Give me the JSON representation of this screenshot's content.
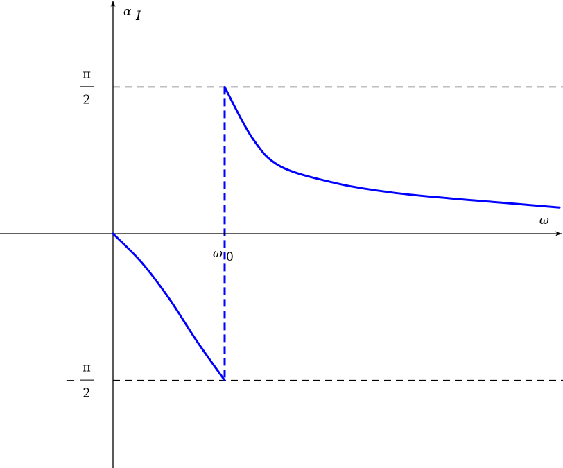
{
  "chart_data": {
    "type": "line",
    "title": "",
    "xlabel": "ω",
    "ylabel": "α_I",
    "ylabel_main": "α",
    "ylabel_sub": "I",
    "x_ticks": [
      {
        "value": 1,
        "main": "ω",
        "sub": "0"
      }
    ],
    "y_ticks": [
      {
        "value": 1.5708,
        "sign": "",
        "numerator": "π",
        "denominator": "2"
      },
      {
        "value": -1.5708,
        "sign": "−",
        "numerator": "π",
        "denominator": "2"
      }
    ],
    "xlim": [
      -1,
      4
    ],
    "ylim": [
      -2.5,
      2.5
    ],
    "reference_lines": [
      {
        "orientation": "horizontal",
        "value": 1.5708,
        "style": "dashed",
        "color": "#000000"
      },
      {
        "orientation": "horizontal",
        "value": -1.5708,
        "style": "dashed",
        "color": "#000000"
      },
      {
        "orientation": "vertical",
        "value": 1,
        "style": "dashed",
        "color": "#0000ff"
      }
    ],
    "series": [
      {
        "segment": "below-resonance",
        "color": "#0000ff",
        "points": [
          [
            0,
            0
          ],
          [
            0.25,
            -0.3
          ],
          [
            0.5,
            -0.69
          ],
          [
            0.75,
            -1.15
          ],
          [
            1,
            -1.5708
          ]
        ]
      },
      {
        "segment": "above-resonance",
        "color": "#0000ff",
        "points": [
          [
            1,
            1.5708
          ],
          [
            1.25,
            1.02
          ],
          [
            1.5,
            0.72
          ],
          [
            2,
            0.54
          ],
          [
            2.5,
            0.44
          ],
          [
            3,
            0.38
          ],
          [
            3.5,
            0.33
          ],
          [
            4,
            0.28
          ]
        ]
      }
    ],
    "grid": false,
    "legend": "none"
  }
}
